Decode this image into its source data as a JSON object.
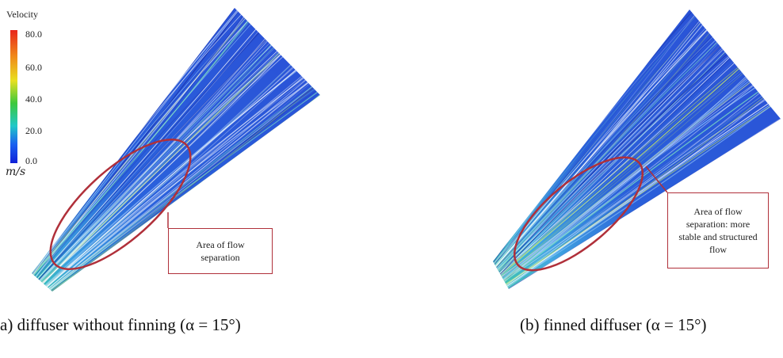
{
  "legend": {
    "title": "Velocity",
    "ticks": [
      "80.0",
      "60.0",
      "40.0",
      "20.0",
      "0.0"
    ],
    "unit": "m/s",
    "colors": [
      "#e8261c",
      "#f08a1a",
      "#e8e020",
      "#3cc83c",
      "#20c8c8",
      "#1a60f0",
      "#1020d8"
    ]
  },
  "panels": [
    {
      "callout": "Area of flow separation",
      "caption": "a) diffuser without finning (α = 15°)"
    },
    {
      "callout": "Area of flow separation: more stable and structured flow",
      "caption": "(b) finned diffuser (α = 15°)"
    }
  ],
  "colors": {
    "flow_base": "#2a52d8",
    "flow_dark": "#1a2fa8",
    "streak": "#ffffff",
    "ellipse": "#b0303a"
  }
}
